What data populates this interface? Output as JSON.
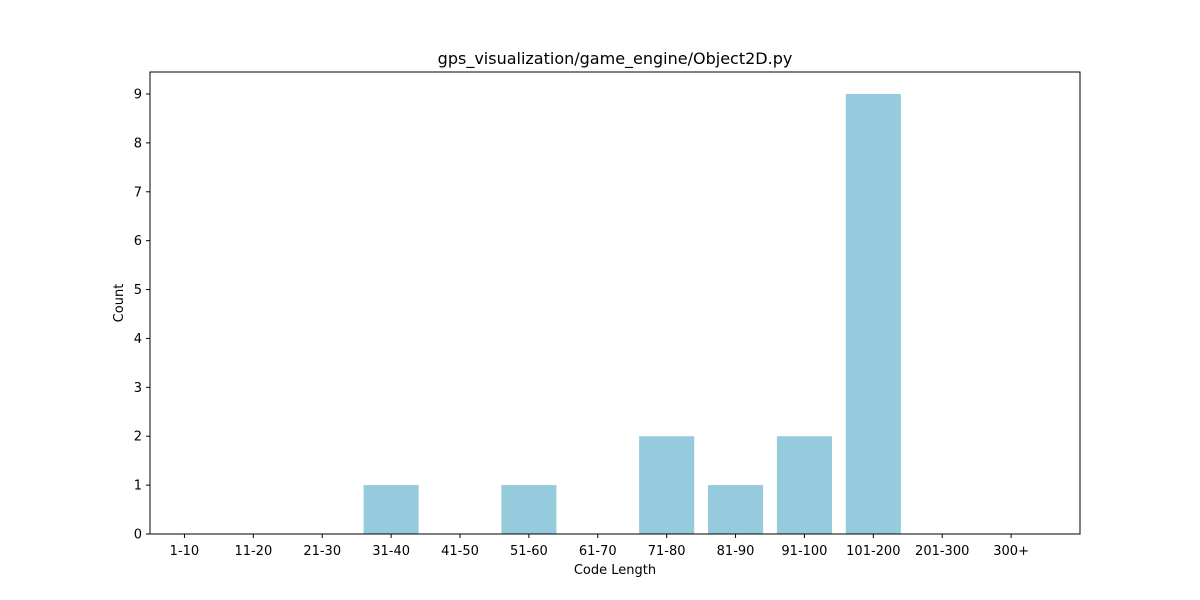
{
  "chart_data": {
    "type": "bar",
    "title": "gps_visualization/game_engine/Object2D.py",
    "xlabel": "Code Length",
    "ylabel": "Count",
    "categories": [
      "1-10",
      "11-20",
      "21-30",
      "31-40",
      "41-50",
      "51-60",
      "61-70",
      "71-80",
      "81-90",
      "91-100",
      "101-200",
      "201-300",
      "300+"
    ],
    "values": [
      0,
      0,
      0,
      1,
      0,
      1,
      0,
      2,
      1,
      2,
      9,
      0,
      0
    ],
    "ylim": [
      0,
      9.45
    ],
    "yticks": [
      "0",
      "1",
      "2",
      "3",
      "4",
      "5",
      "6",
      "7",
      "8",
      "9"
    ],
    "bar_color": "#96cadd",
    "grid": false,
    "legend": null
  }
}
